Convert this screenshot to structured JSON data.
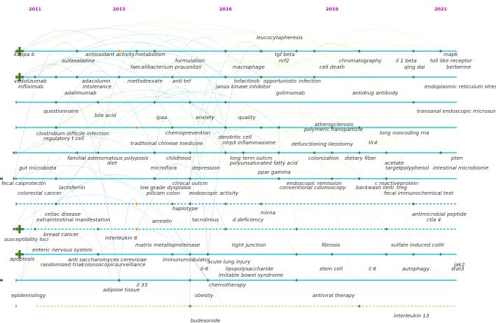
{
  "chart_data": {
    "type": "timeline",
    "title": "",
    "xlabel": "",
    "ylabel": "",
    "xlim": [
      2010,
      2022
    ],
    "years": [
      2011,
      2013,
      2016,
      2019,
      2021
    ],
    "grid": false,
    "legend": "none",
    "colors": {
      "year_label": "#cc00cc",
      "arc_early": "#5c6bc0",
      "arc_mid": "#26a69a",
      "arc_late": "#d4e157",
      "node_cross": "#2e7d32",
      "node_cross_late": "#ff8f00",
      "line_cyan": "#26c6da",
      "line_green": "#9ccc65",
      "text": "#333333"
    },
    "clusters": [
      {
        "id": 0,
        "start": 2011,
        "end": 2021,
        "color": "#26c6da",
        "keywords": [
          {
            "term": "kappa b",
            "year": 2011
          },
          {
            "term": "sulfasalazine",
            "year": 2012
          },
          {
            "term": "antioxidant activity",
            "year": 2012
          },
          {
            "term": "metabolism",
            "year": 2013
          },
          {
            "term": "formulation",
            "year": 2014
          },
          {
            "term": "faecalibacterium prausnitzii",
            "year": 2013.5
          },
          {
            "term": "leucocytapheresis",
            "year": 2016
          },
          {
            "term": "macrophage",
            "year": 2016
          },
          {
            "term": "tgf beta",
            "year": 2017
          },
          {
            "term": "nrf2",
            "year": 2017
          },
          {
            "term": "chromatography",
            "year": 2018.5
          },
          {
            "term": "cell death",
            "year": 2018
          },
          {
            "term": "il 1 beta",
            "year": 2019.5
          },
          {
            "term": "qing dai",
            "year": 2019.5
          },
          {
            "term": "mapk",
            "year": 2021
          },
          {
            "term": "toll like receptor",
            "year": 2020.5
          },
          {
            "term": "berberine",
            "year": 2021
          }
        ]
      },
      {
        "id": 1,
        "start": 2011,
        "end": 2021,
        "color": "#26c6da",
        "keywords": [
          {
            "term": "vedolizumab",
            "year": 2011
          },
          {
            "term": "infliximab",
            "year": 2011
          },
          {
            "term": "adacolumn",
            "year": 2012
          },
          {
            "term": "intolerance",
            "year": 2012
          },
          {
            "term": "methotrexate",
            "year": 2013
          },
          {
            "term": "adalimumab",
            "year": 2011.5
          },
          {
            "term": "anti tnf",
            "year": 2014.5
          },
          {
            "term": "tofacitinib",
            "year": 2016
          },
          {
            "term": "janus kinase inhibitor",
            "year": 2016
          },
          {
            "term": "opportunistic infection",
            "year": 2017
          },
          {
            "term": "golimumab",
            "year": 2017
          },
          {
            "term": "antidrug antibody",
            "year": 2018.5
          },
          {
            "term": "endoplasmic reticulum stress",
            "year": 2020.5
          }
        ]
      },
      {
        "id": 2,
        "start": 2011,
        "end": 2021,
        "color": "#26c6da",
        "keywords": [
          {
            "term": "questionnaire",
            "year": 2011.5
          },
          {
            "term": "bile acid",
            "year": 2012.5
          },
          {
            "term": "ipaa",
            "year": 2014
          },
          {
            "term": "anxiety",
            "year": 2015
          },
          {
            "term": "quality",
            "year": 2016
          },
          {
            "term": "transanal endoscopic microsurgery",
            "year": 2020.5
          }
        ]
      },
      {
        "id": 3,
        "start": 2011,
        "end": 2021,
        "color": "#26c6da",
        "keywords": [
          {
            "term": "clostridium difficile infection",
            "year": 2011.5
          },
          {
            "term": "regulatory t cell",
            "year": 2011.5
          },
          {
            "term": "chemoprevention",
            "year": 2014.5
          },
          {
            "term": "traditional chinese medicine",
            "year": 2013.5
          },
          {
            "term": "dendritic cell",
            "year": 2016
          },
          {
            "term": "nlrp3 inflammasome",
            "year": 2016
          },
          {
            "term": "atherosclerosis",
            "year": 2017.5
          },
          {
            "term": "polymeric nanoparticle",
            "year": 2017.5
          },
          {
            "term": "defunctioning ileostomy",
            "year": 2017
          },
          {
            "term": "long noncoding rna",
            "year": 2019.5
          },
          {
            "term": "tlr4",
            "year": 2019
          }
        ]
      },
      {
        "id": 4,
        "start": 2011,
        "end": 2021,
        "color": "#26c6da",
        "keywords": [
          {
            "term": "familial adenomatous polyposis",
            "year": 2012
          },
          {
            "term": "diet",
            "year": 2012.5
          },
          {
            "term": "childhood",
            "year": 2014
          },
          {
            "term": "microflora",
            "year": 2014
          },
          {
            "term": "depression",
            "year": 2015
          },
          {
            "term": "long term outcm",
            "year": 2016
          },
          {
            "term": "polyunsaturated fatty acid",
            "year": 2016.5
          },
          {
            "term": "colonization",
            "year": 2017.5
          },
          {
            "term": "dietary fiber",
            "year": 2018.5
          },
          {
            "term": "acetate",
            "year": 2019.5
          },
          {
            "term": "pten",
            "year": 2021
          },
          {
            "term": "ppar gamma",
            "year": 2016.5
          },
          {
            "term": "target",
            "year": 2019
          },
          {
            "term": "polyphenol",
            "year": 2020
          },
          {
            "term": "intestinal microbiome",
            "year": 2021
          },
          {
            "term": "gut microbiota",
            "year": 2010.5
          }
        ]
      },
      {
        "id": 5,
        "start": 2011,
        "end": 2021,
        "color": "#26c6da",
        "keywords": [
          {
            "term": "fecal calprotectin",
            "year": 2010.5
          },
          {
            "term": "colorectal cancer",
            "year": 2010.5
          },
          {
            "term": "lactoferrin",
            "year": 2011.5
          },
          {
            "term": "clinical outcm",
            "year": 2015
          },
          {
            "term": "low grade dysplasia",
            "year": 2014
          },
          {
            "term": "pillcam colon",
            "year": 2014
          },
          {
            "term": "endoscopic activity",
            "year": 2015
          },
          {
            "term": "endoscopic remission",
            "year": 2017.5
          },
          {
            "term": "conventional colonoscopy",
            "year": 2017.5
          },
          {
            "term": "c reactiveprotein",
            "year": 2019.5
          },
          {
            "term": "backwash ileiti",
            "year": 2019
          },
          {
            "term": "treg",
            "year": 2019.5
          },
          {
            "term": "fecal immunochemical test",
            "year": 2020
          }
        ]
      },
      {
        "id": 6,
        "start": 2011,
        "end": 2021,
        "color": "#42a5f5",
        "keywords": [
          {
            "term": "haplotype",
            "year": 2014.5
          },
          {
            "term": "celiac disease",
            "year": 2011.5
          },
          {
            "term": "extraintestinal manifestation",
            "year": 2011.5
          },
          {
            "term": "arrestin",
            "year": 2013.5
          },
          {
            "term": "tacrolimus",
            "year": 2015
          },
          {
            "term": "mirna",
            "year": 2017
          },
          {
            "term": "d deficiency",
            "year": 2016
          },
          {
            "term": "antimicrobial peptide",
            "year": 2020.5
          },
          {
            "term": "ctla 4",
            "year": 2020.5
          }
        ]
      },
      {
        "id": 7,
        "start": 2011,
        "end": 2021,
        "color": "#26c6da",
        "keywords": [
          {
            "term": "breast cancer",
            "year": 2011
          },
          {
            "term": "susceptibility loci",
            "year": 2010.5
          },
          {
            "term": "interleukin 6",
            "year": 2012.5
          },
          {
            "term": "matrix metalloproteinase",
            "year": 2013.5
          },
          {
            "term": "enteric nervous system",
            "year": 2011
          },
          {
            "term": "tight junction",
            "year": 2016
          },
          {
            "term": "fibrosis",
            "year": 2018
          },
          {
            "term": "sulfate induced coliti",
            "year": 2020
          },
          {
            "term": "apoptosis",
            "year": 2010.5
          }
        ]
      },
      {
        "id": 8,
        "start": 2011,
        "end": 2021,
        "color": "#26c6da",
        "keywords": [
          {
            "term": "randomized trial",
            "year": 2011
          },
          {
            "term": "anti saccharomyces cerevisiae",
            "year": 2012.5
          },
          {
            "term": "colonoscopicsurveillance",
            "year": 2012.5
          },
          {
            "term": "immunomodulator",
            "year": 2014.5
          },
          {
            "term": "acute lung injury",
            "year": 2015.5
          },
          {
            "term": "il-6",
            "year": 2015
          },
          {
            "term": "lipopolysaccharide",
            "year": 2015.5
          },
          {
            "term": "imitable bowel syndrome",
            "year": 2015.5
          },
          {
            "term": "stem cell",
            "year": 2018
          },
          {
            "term": "il 6",
            "year": 2019
          },
          {
            "term": "autophagy",
            "year": 2020
          },
          {
            "term": "jak2",
            "year": 2020.5
          },
          {
            "term": "stat3",
            "year": 2021
          }
        ]
      },
      {
        "id": 9,
        "start": 2011,
        "end": 2021,
        "color": "#26c6da",
        "keywords": [
          {
            "term": "epidemiology",
            "year": 2010.5
          },
          {
            "term": "il 33",
            "year": 2013
          },
          {
            "term": "adipose tissue",
            "year": 2013
          },
          {
            "term": "chemotherapy",
            "year": 2015.5
          },
          {
            "term": "obesity",
            "year": 2015
          },
          {
            "term": "antiviral therapy",
            "year": 2018
          }
        ]
      },
      {
        "id": 10,
        "start": 2011,
        "end": 2021,
        "color": "#9ccc65",
        "keywords": [
          {
            "term": "budesonide",
            "year": 2015
          },
          {
            "term": "interleukin 13",
            "year": 2019.5
          }
        ]
      }
    ]
  }
}
